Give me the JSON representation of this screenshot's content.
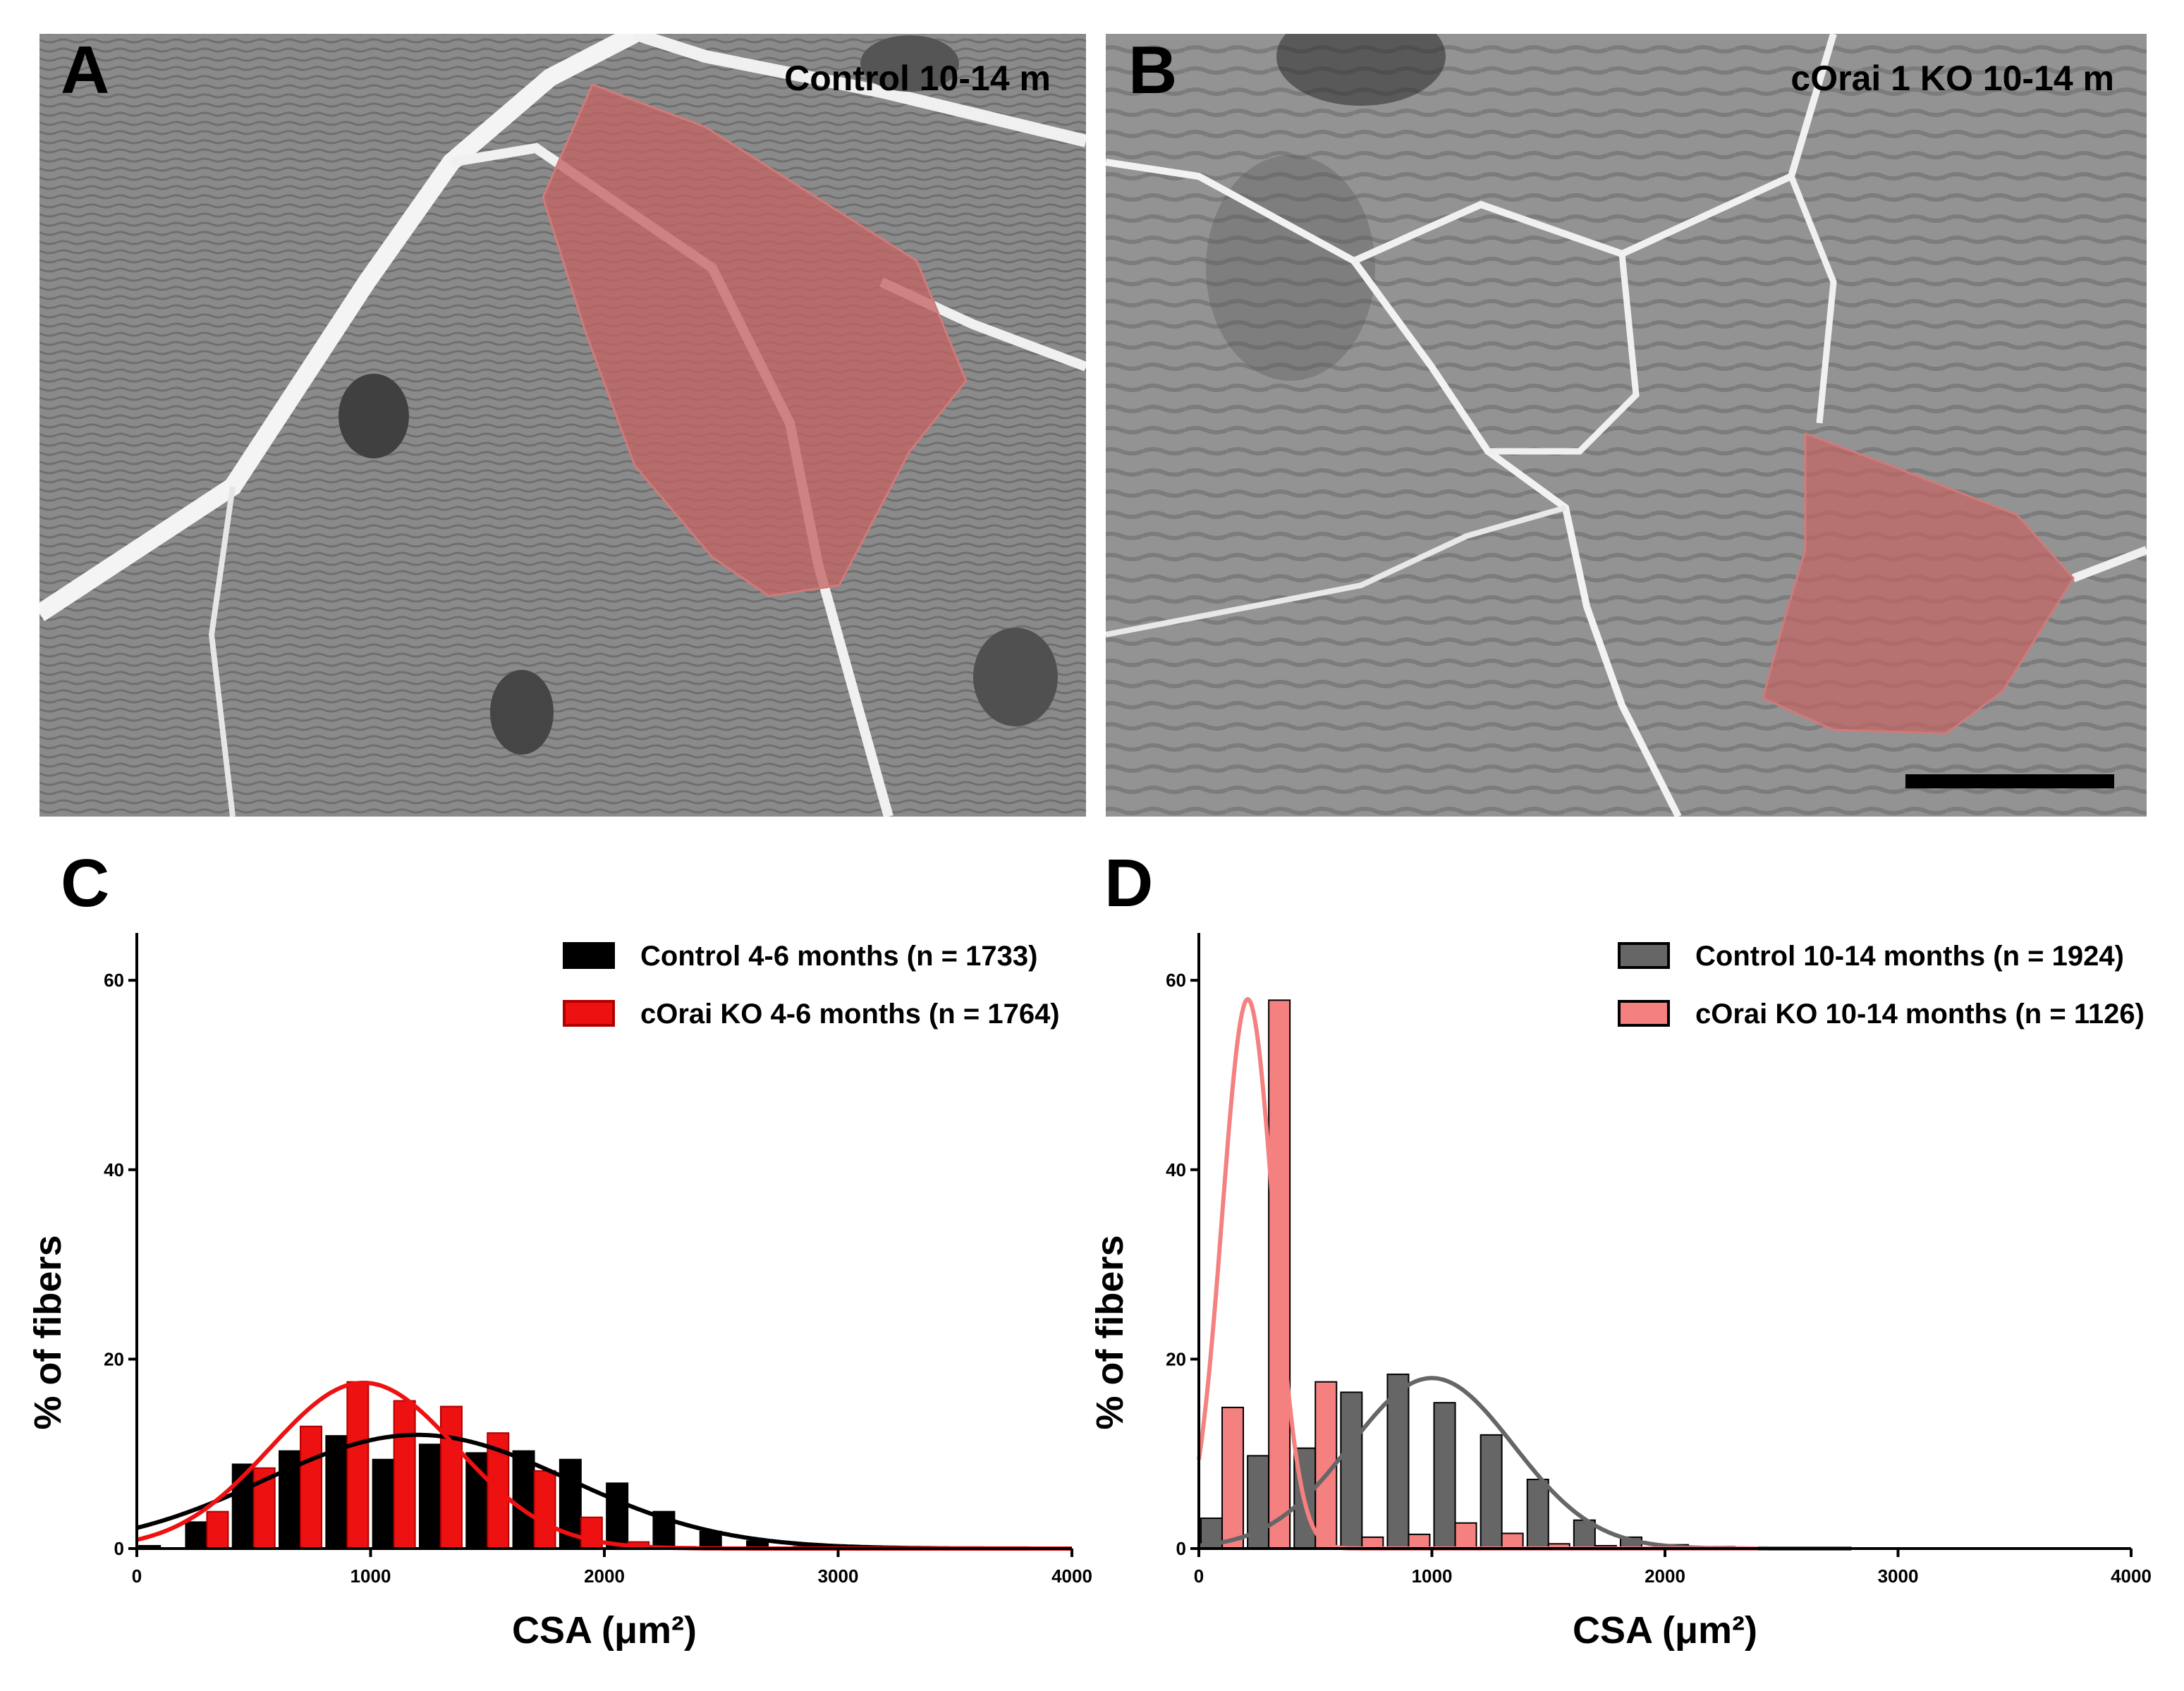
{
  "panels": {
    "a": {
      "letter": "A",
      "label": "Control 10-14 m"
    },
    "b": {
      "letter": "B",
      "label": "cOrai 1 KO 10-14 m"
    },
    "c": {
      "letter": "C"
    },
    "d": {
      "letter": "D"
    }
  },
  "colors": {
    "control_46": "#000000",
    "ko_46": "#ee1111",
    "control_1014": "#666666",
    "ko_1014": "#f58080",
    "highlight": "#c46464",
    "scale_bar": "#000000"
  },
  "chart_data": [
    {
      "panel": "C",
      "type": "bar",
      "xlabel": "CSA (μm²)",
      "ylabel": "% of fibers",
      "xlim": [
        0,
        4000
      ],
      "ylim": [
        0,
        65
      ],
      "xticks": [
        0,
        1000,
        2000,
        3000,
        4000
      ],
      "yticks": [
        0,
        20,
        40,
        60
      ],
      "xtick_labels": [
        "0",
        "1000",
        "2000",
        "3000",
        "4000"
      ],
      "legend_position": "top-right",
      "bin_centers": [
        100,
        300,
        500,
        700,
        900,
        1100,
        1300,
        1500,
        1700,
        1900,
        2100,
        2300,
        2500,
        2700,
        2900
      ],
      "series": [
        {
          "name": "Control 4-6 months (n = 1733)",
          "values": [
            0.3,
            2.8,
            8.9,
            10.3,
            11.9,
            9.4,
            11.0,
            10.1,
            10.3,
            9.4,
            6.9,
            3.9,
            1.8,
            0.8,
            0.2
          ],
          "fit": {
            "type": "gaussian",
            "amplitude": 12,
            "mean": 1200,
            "sd": 650
          }
        },
        {
          "name": "cOrai KO 4-6 months (n = 1764)",
          "values": [
            0,
            3.9,
            8.5,
            12.9,
            17.6,
            15.6,
            15.0,
            12.2,
            8.2,
            3.3,
            0.7,
            0.2,
            0,
            0,
            0
          ],
          "fit": {
            "type": "gaussian",
            "amplitude": 17.5,
            "mean": 970,
            "sd": 400
          }
        }
      ]
    },
    {
      "panel": "D",
      "type": "bar",
      "xlabel": "CSA (μm²)",
      "ylabel": "% of fibers",
      "xlim": [
        0,
        4000
      ],
      "ylim": [
        0,
        65
      ],
      "xticks": [
        0,
        1000,
        2000,
        3000,
        4000
      ],
      "yticks": [
        0,
        20,
        40,
        60
      ],
      "xtick_labels": [
        "0",
        "1000",
        "2000",
        "3000",
        "4000"
      ],
      "legend_position": "top-right",
      "bin_centers": [
        100,
        300,
        500,
        700,
        900,
        1100,
        1300,
        1500,
        1700,
        1900,
        2100,
        2300,
        2500,
        2700
      ],
      "series": [
        {
          "name": "Control 10-14 months (n = 1924)",
          "values": [
            3.2,
            9.8,
            10.6,
            16.5,
            18.4,
            15.4,
            12.0,
            7.3,
            3.0,
            1.2,
            0.4,
            0.2,
            0.1,
            0
          ],
          "fit": {
            "type": "gaussian",
            "amplitude": 18,
            "mean": 1000,
            "sd": 350
          }
        },
        {
          "name": "cOrai KO 10-14 months (n = 1126)",
          "values": [
            14.9,
            57.9,
            17.6,
            1.2,
            1.5,
            2.7,
            1.6,
            0.5,
            0.3,
            0,
            0,
            0,
            0,
            0
          ],
          "fit": {
            "type": "gaussian",
            "amplitude": 58,
            "mean": 210,
            "sd": 110
          }
        }
      ]
    }
  ]
}
